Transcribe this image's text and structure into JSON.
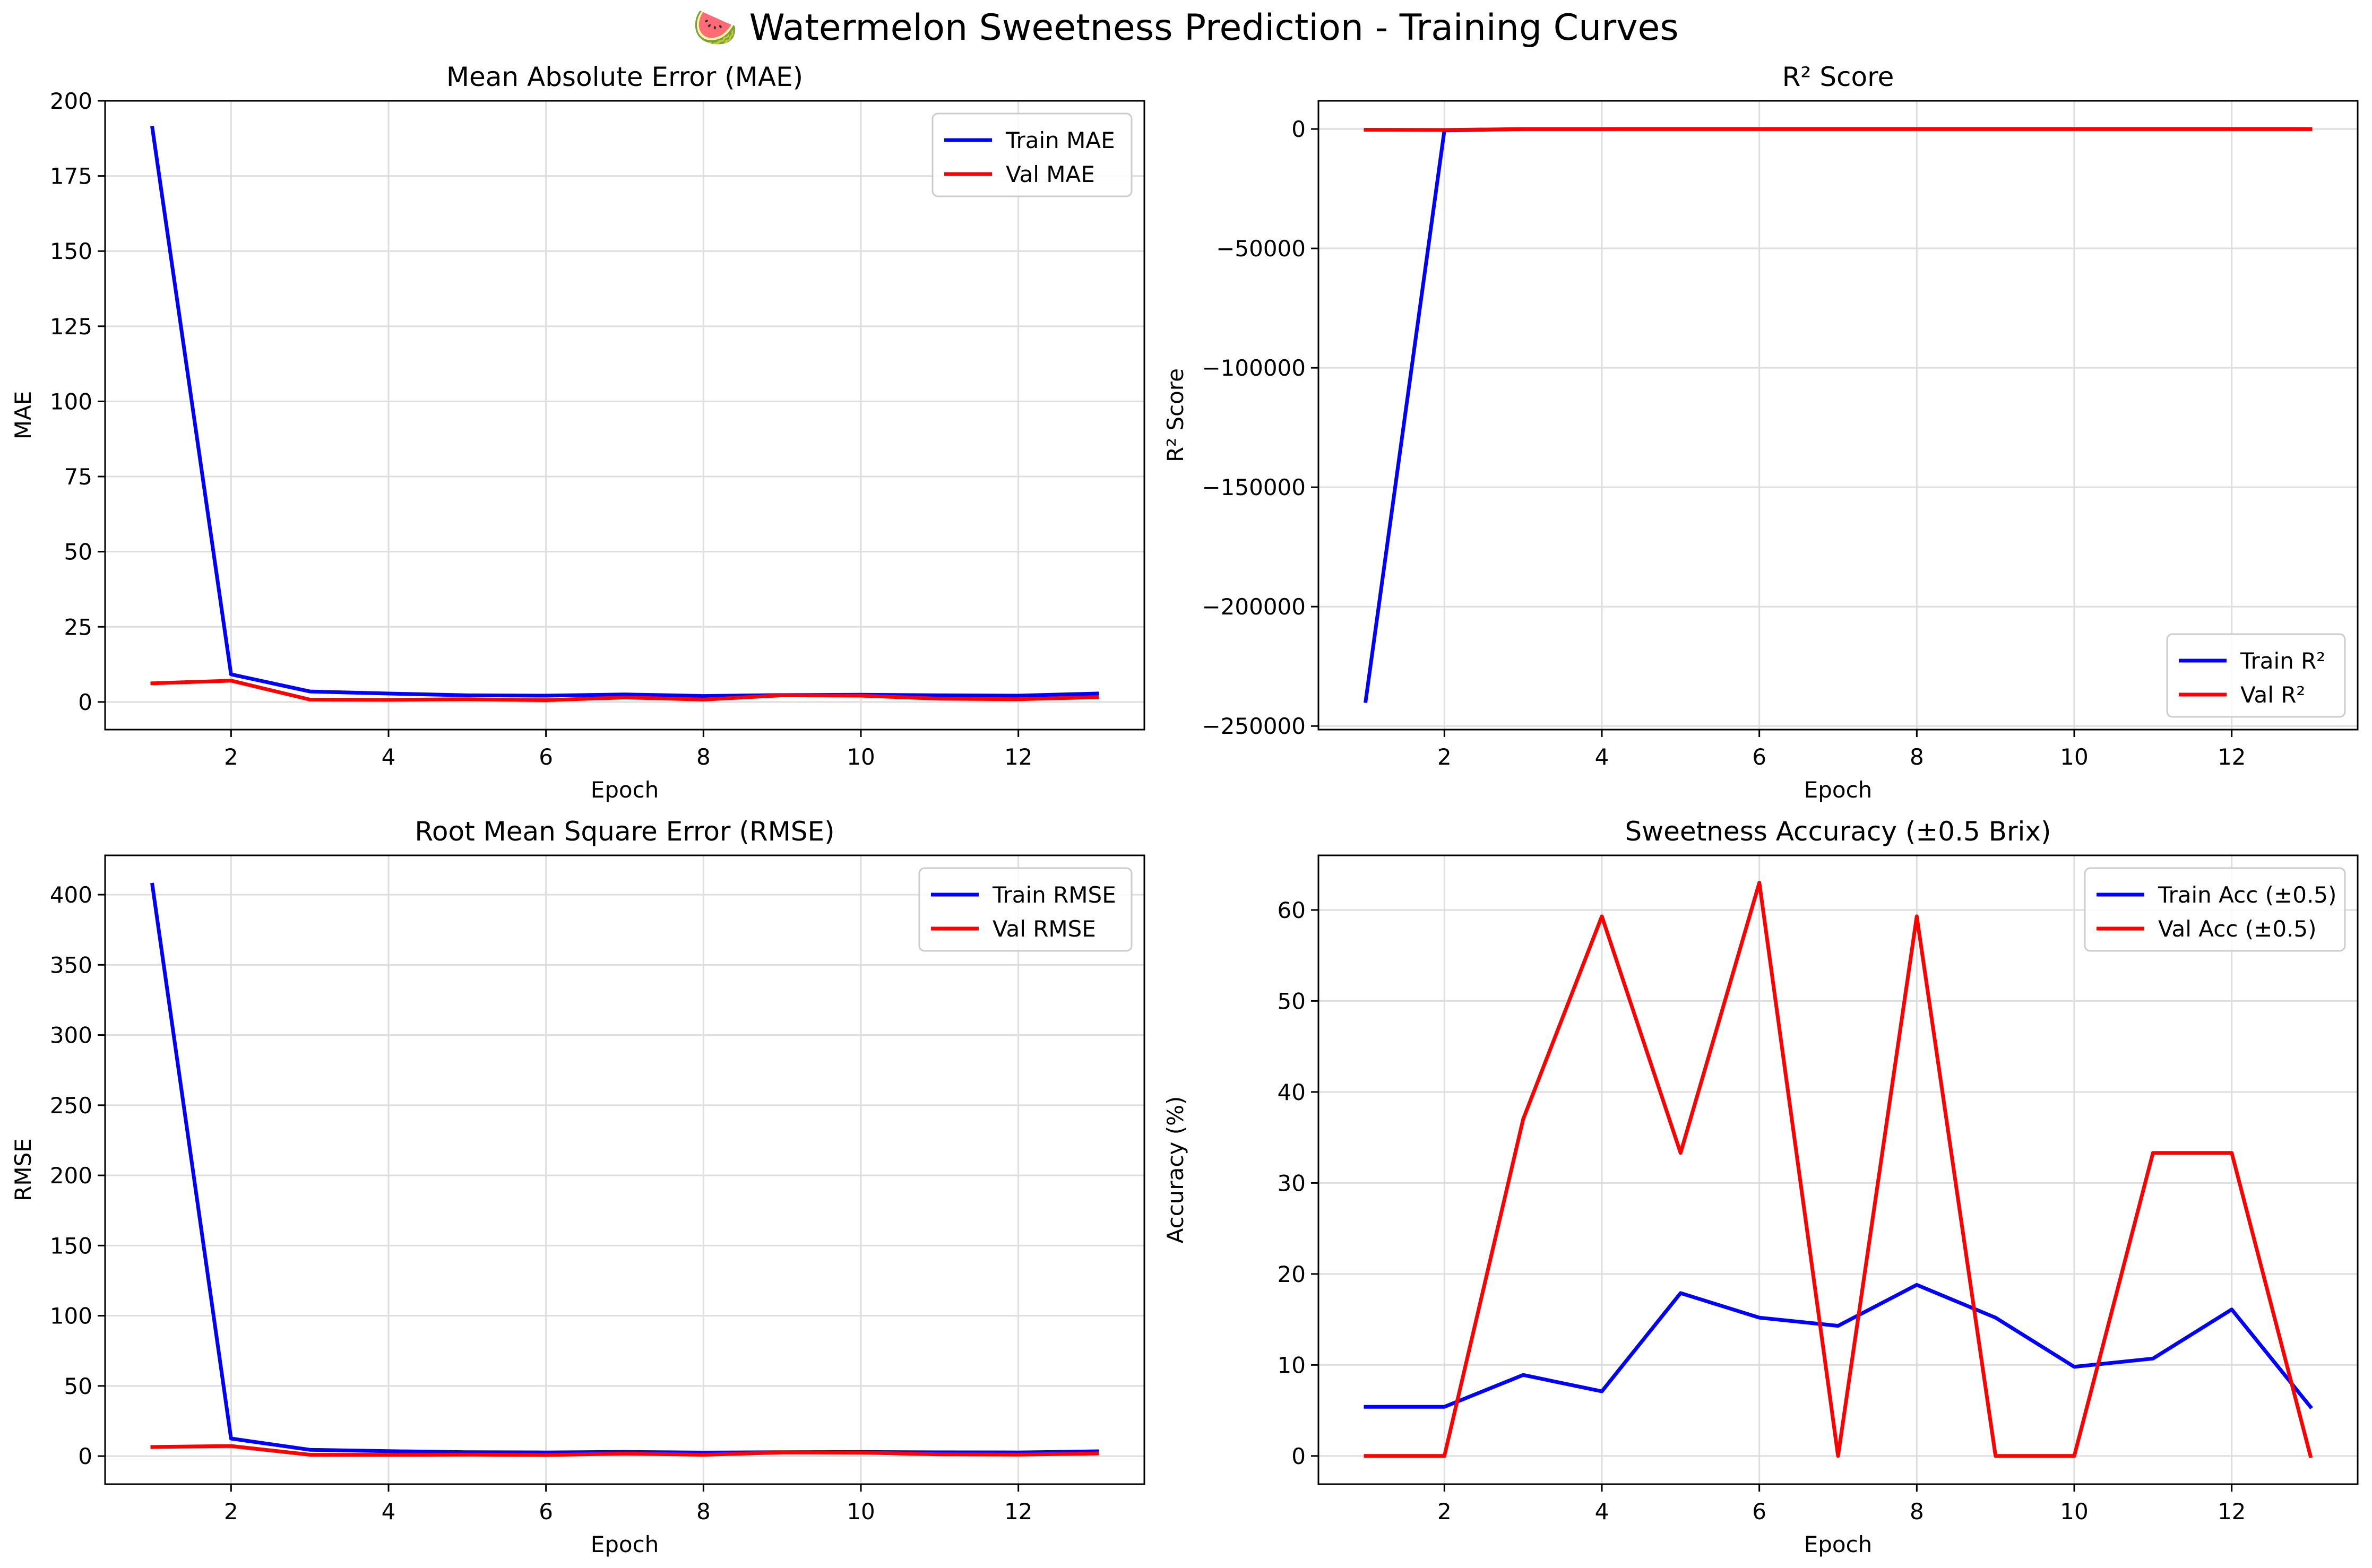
{
  "figure": {
    "suptitle": "🍉 Watermelon Sweetness Prediction - Training Curves"
  },
  "chart_data": [
    {
      "type": "line",
      "title": "Mean Absolute Error (MAE)",
      "xlabel": "Epoch",
      "ylabel": "MAE",
      "xlim": [
        0.4,
        13.6
      ],
      "ylim": [
        -9.2,
        200
      ],
      "xticks": [
        2,
        4,
        6,
        8,
        10,
        12
      ],
      "yticks": [
        0,
        25,
        50,
        75,
        100,
        125,
        150,
        175,
        200
      ],
      "grid": true,
      "legend_position": "top-right",
      "x": [
        1,
        2,
        3,
        4,
        5,
        6,
        7,
        8,
        9,
        10,
        11,
        12,
        13
      ],
      "series": [
        {
          "name": "Train MAE",
          "color": "#0000ff",
          "values": [
            191,
            9.2,
            3.5,
            2.8,
            2.2,
            2.1,
            2.5,
            2.0,
            2.3,
            2.4,
            2.2,
            2.1,
            2.8
          ]
        },
        {
          "name": "Val MAE",
          "color": "#ff0000",
          "values": [
            6.2,
            7.1,
            0.8,
            0.7,
            0.9,
            0.6,
            1.5,
            0.8,
            2.2,
            2.1,
            1.1,
            0.9,
            1.6
          ]
        }
      ]
    },
    {
      "type": "line",
      "title": "R² Score",
      "xlabel": "Epoch",
      "ylabel": "R² Score",
      "xlim": [
        0.4,
        13.6
      ],
      "ylim": [
        -251500,
        11800
      ],
      "xticks": [
        2,
        4,
        6,
        8,
        10,
        12
      ],
      "yticks": [
        0,
        -50000,
        -100000,
        -150000,
        -200000,
        -250000
      ],
      "ytick_labels": [
        "0",
        "−50000",
        "−100000",
        "−150000",
        "−200000",
        "−250000"
      ],
      "grid": true,
      "legend_position": "bottom-right",
      "x": [
        1,
        2,
        3,
        4,
        5,
        6,
        7,
        8,
        9,
        10,
        11,
        12,
        13
      ],
      "series": [
        {
          "name": "Train R²",
          "color": "#0000ff",
          "values": [
            -239500,
            -600,
            -20,
            -10,
            -8,
            -6,
            -8,
            -5,
            -6,
            -7,
            -6,
            -5,
            -10
          ]
        },
        {
          "name": "Val R²",
          "color": "#ff0000",
          "values": [
            -300,
            -400,
            -20,
            -15,
            -18,
            -12,
            -30,
            -15,
            -40,
            -38,
            -20,
            -15,
            -30
          ]
        }
      ]
    },
    {
      "type": "line",
      "title": "Root Mean Square Error (RMSE)",
      "xlabel": "Epoch",
      "ylabel": "RMSE",
      "xlim": [
        0.4,
        13.6
      ],
      "ylim": [
        -20,
        428
      ],
      "xticks": [
        2,
        4,
        6,
        8,
        10,
        12
      ],
      "yticks": [
        0,
        50,
        100,
        150,
        200,
        250,
        300,
        350,
        400
      ],
      "grid": true,
      "legend_position": "top-right",
      "x": [
        1,
        2,
        3,
        4,
        5,
        6,
        7,
        8,
        9,
        10,
        11,
        12,
        13
      ],
      "series": [
        {
          "name": "Train RMSE",
          "color": "#0000ff",
          "values": [
            407,
            12.5,
            4.5,
            3.5,
            2.8,
            2.6,
            3.0,
            2.5,
            2.8,
            2.9,
            2.7,
            2.6,
            3.4
          ]
        },
        {
          "name": "Val RMSE",
          "color": "#ff0000",
          "values": [
            6.5,
            7.2,
            1.0,
            0.9,
            1.1,
            0.8,
            1.8,
            1.0,
            2.6,
            2.5,
            1.3,
            1.1,
            1.9
          ]
        }
      ]
    },
    {
      "type": "line",
      "title": "Sweetness Accuracy (±0.5 Brix)",
      "xlabel": "Epoch",
      "ylabel": "Accuracy (%)",
      "xlim": [
        0.4,
        13.6
      ],
      "ylim": [
        -3.1,
        66
      ],
      "xticks": [
        2,
        4,
        6,
        8,
        10,
        12
      ],
      "yticks": [
        0,
        10,
        20,
        30,
        40,
        50,
        60
      ],
      "grid": true,
      "legend_position": "top-right",
      "x": [
        1,
        2,
        3,
        4,
        5,
        6,
        7,
        8,
        9,
        10,
        11,
        12,
        13
      ],
      "series": [
        {
          "name": "Train Acc (±0.5)",
          "color": "#0000ff",
          "values": [
            5.4,
            5.4,
            8.9,
            7.1,
            17.9,
            15.2,
            14.3,
            18.8,
            15.2,
            9.8,
            10.7,
            16.1,
            5.4
          ]
        },
        {
          "name": "Val Acc (±0.5)",
          "color": "#ff0000",
          "values": [
            0,
            0,
            37.0,
            59.3,
            33.3,
            63.0,
            0,
            59.3,
            0,
            0,
            33.3,
            33.3,
            0
          ]
        }
      ]
    }
  ]
}
